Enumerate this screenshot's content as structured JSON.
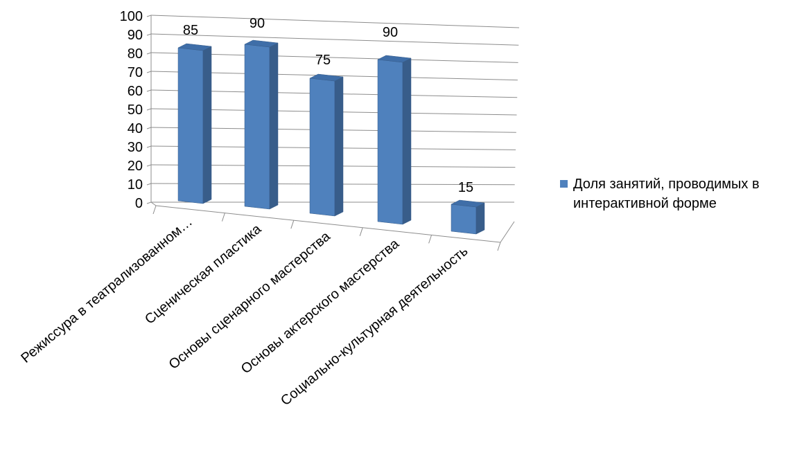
{
  "colors": {
    "bar_front": "#4f81bd",
    "bar_side": "#385d8a",
    "bar_top": "#3f6ea8",
    "grid": "#8c8c8c",
    "axis": "#8c8c8c",
    "text": "#000000"
  },
  "chart_data": {
    "type": "bar",
    "categories": [
      "Режиссура в театрализованном…",
      "Сценическая пластика",
      "Основы сценарного мастерства",
      "Основы актерского мастерства",
      "Социально-культурная деятельность"
    ],
    "series": [
      {
        "name": "Доля занятий, проводимых в интерактивной форме",
        "values": [
          85,
          90,
          75,
          90,
          15
        ]
      }
    ],
    "data_labels": [
      "85",
      "90",
      "75",
      "90",
      "15"
    ],
    "ylim": [
      0,
      100
    ],
    "yticks": [
      "0",
      "10",
      "20",
      "30",
      "40",
      "50",
      "60",
      "70",
      "80",
      "90",
      "100"
    ],
    "grid": true,
    "legend": "right",
    "style": "3d-perspective"
  }
}
